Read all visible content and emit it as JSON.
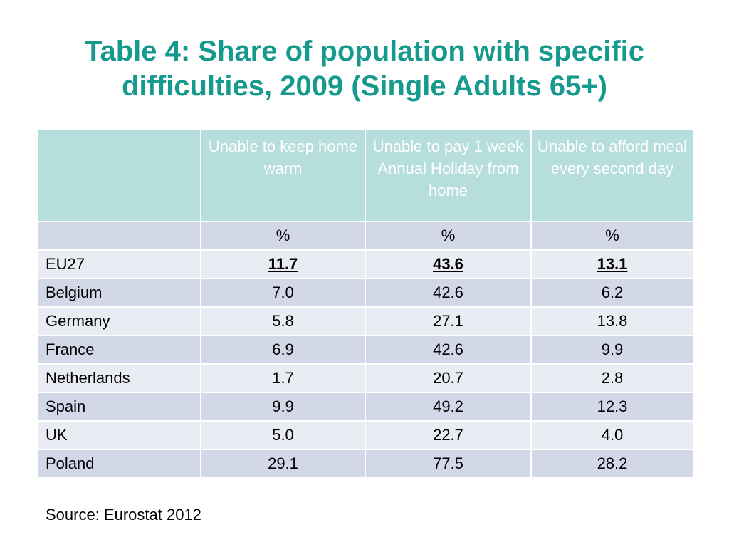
{
  "title": {
    "line1": "Table 4:  Share of population with specific",
    "line2": "difficulties, 2009 (Single Adults 65+)"
  },
  "table": {
    "headers": [
      "",
      "Unable to keep home warm",
      "Unable to pay 1 week Annual Holiday from home",
      "Unable to afford meal every second day"
    ],
    "units": [
      "",
      "%",
      "%",
      "%"
    ],
    "rows": [
      {
        "country": "EU27",
        "values": [
          "11.7",
          "43.6",
          "13.1"
        ]
      },
      {
        "country": "Belgium",
        "values": [
          "7.0",
          "42.6",
          "6.2"
        ]
      },
      {
        "country": "Germany",
        "values": [
          "5.8",
          "27.1",
          "13.8"
        ]
      },
      {
        "country": "France",
        "values": [
          "6.9",
          "42.6",
          "9.9"
        ]
      },
      {
        "country": "Netherlands",
        "values": [
          "1.7",
          "20.7",
          "2.8"
        ]
      },
      {
        "country": "Spain",
        "values": [
          "9.9",
          "49.2",
          "12.3"
        ]
      },
      {
        "country": "UK",
        "values": [
          "5.0",
          "22.7",
          "4.0"
        ]
      },
      {
        "country": "Poland",
        "values": [
          "29.1",
          "77.5",
          "28.2"
        ]
      }
    ]
  },
  "source": "Source:  Eurostat 2012",
  "colors": {
    "title": "#179a8e",
    "header_bg": "#b6dedd",
    "row_dark": "#d3d8e8",
    "row_light": "#eaecf3"
  }
}
